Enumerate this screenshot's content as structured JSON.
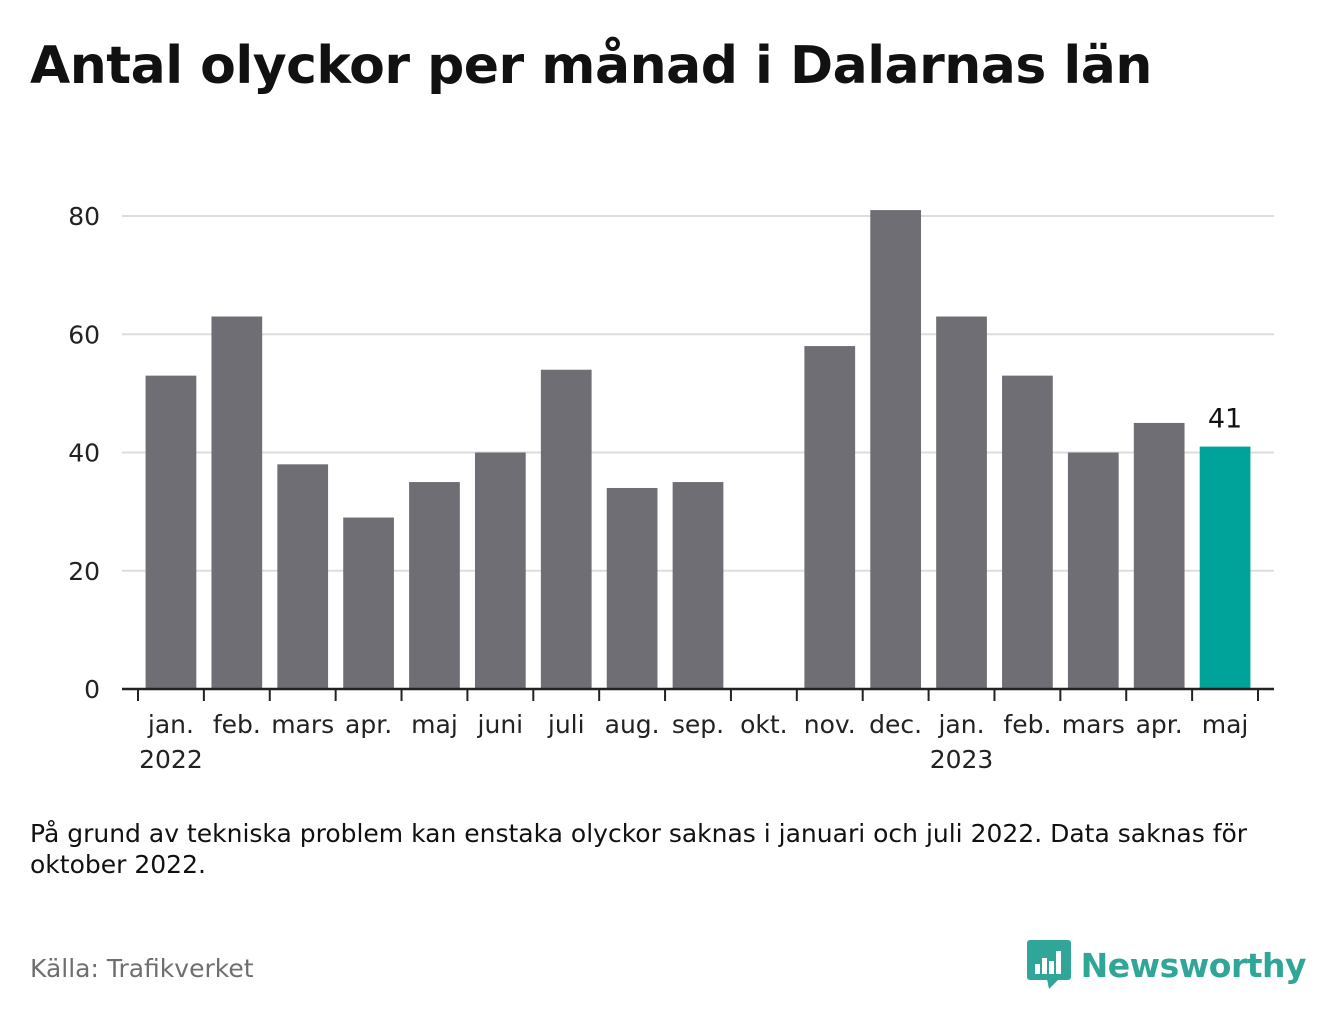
{
  "title": "Antal olyckor per månad i Dalarnas län",
  "footnote": "På grund av tekniska problem kan enstaka olyckor saknas i januari och juli 2022. Data saknas för oktober 2022.",
  "source": "Källa: Trafikverket",
  "brand": {
    "name": "Newsworthy",
    "icon": "newsworthy-logo-icon",
    "color": "#30a698"
  },
  "colors": {
    "bar": "#6f6e74",
    "highlight": "#00a39a",
    "grid": "#dddddd",
    "axis": "#222222"
  },
  "chart_data": {
    "type": "bar",
    "categories": [
      "jan.",
      "feb.",
      "mars",
      "apr.",
      "maj",
      "juni",
      "juli",
      "aug.",
      "sep.",
      "okt.",
      "nov.",
      "dec.",
      "jan.",
      "feb.",
      "mars",
      "apr.",
      "maj"
    ],
    "year_labels": [
      "2022",
      "",
      "",
      "",
      "",
      "",
      "",
      "",
      "",
      "",
      "",
      "",
      "2023",
      "",
      "",
      "",
      ""
    ],
    "values": [
      53,
      63,
      38,
      29,
      35,
      40,
      54,
      34,
      35,
      null,
      58,
      81,
      63,
      53,
      40,
      45,
      41
    ],
    "highlight_index": 16,
    "highlight_label": "41",
    "yticks": [
      0,
      20,
      40,
      60,
      80
    ],
    "ylim": [
      0,
      82
    ],
    "grid": true,
    "legend": "none",
    "xlabel": "",
    "ylabel": ""
  }
}
